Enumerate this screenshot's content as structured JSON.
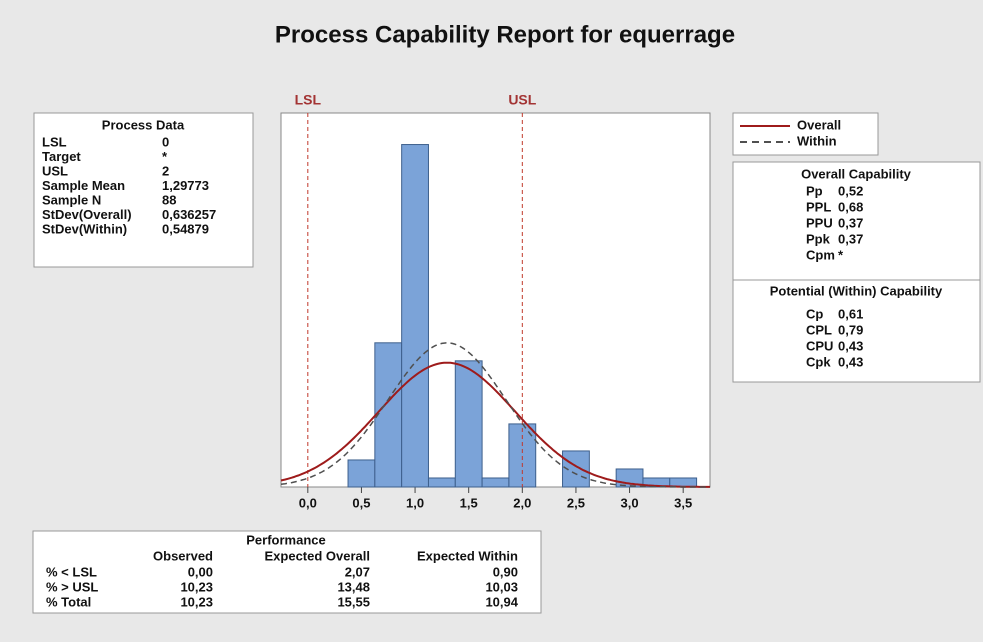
{
  "chart_data": {
    "type": "histogram",
    "title": "Process Capability Report for equerrage",
    "bins": [
      0.375,
      0.625,
      0.875,
      1.125,
      1.375,
      1.625,
      1.875,
      2.125,
      2.375,
      2.625,
      2.875,
      3.125,
      3.375,
      3.625
    ],
    "counts": [
      3,
      16,
      38,
      1,
      14,
      1,
      7,
      0,
      4,
      0,
      2,
      1,
      1
    ],
    "color": "#7ba3d8",
    "xlim": [
      -0.25,
      3.75
    ],
    "ylim": [
      0,
      41.5
    ],
    "xticks": [
      {
        "value": 0,
        "label": "0,0"
      },
      {
        "value": 0.5,
        "label": "0,5"
      },
      {
        "value": 1,
        "label": "1,0"
      },
      {
        "value": 1.5,
        "label": "1,5"
      },
      {
        "value": 2,
        "label": "2,0"
      },
      {
        "value": 2.5,
        "label": "2,5"
      },
      {
        "value": 3,
        "label": "3,0"
      },
      {
        "value": 3.5,
        "label": "3,5"
      }
    ],
    "spec_labels": [
      "LSL",
      "USL"
    ],
    "series": [
      {
        "name": "Overall",
        "color": "#9e1b1b"
      },
      {
        "name": "Within",
        "color": "#505050"
      }
    ]
  },
  "process_data": {
    "title": "Process Data",
    "rows": [
      {
        "name": "LSL",
        "value": 0
      },
      {
        "name": "Target",
        "value": "*"
      },
      {
        "name": "USL",
        "value": 2
      },
      {
        "name": "Sample Mean",
        "value": {
          "value": 1.29773,
          "label": "1,29773"
        }
      },
      {
        "name": "Sample N",
        "value": 88
      },
      {
        "name": "StDev(Overall)",
        "value": {
          "value": 0.636257,
          "label": "0,636257"
        }
      },
      {
        "name": "StDev(Within)",
        "value": {
          "value": 0.54879,
          "label": "0,54879"
        }
      }
    ]
  },
  "overall_capability": {
    "title": "Overall Capability",
    "rows": [
      [
        "Pp",
        "0,52"
      ],
      [
        "PPL",
        "0,68"
      ],
      [
        "PPU",
        "0,37"
      ],
      [
        "Ppk",
        "0,37"
      ],
      [
        "Cpm",
        "*"
      ]
    ]
  },
  "potential_capability": {
    "title": "Potential (Within) Capability",
    "rows": [
      [
        "Cp",
        "0,61"
      ],
      [
        "CPL",
        "0,79"
      ],
      [
        "CPU",
        "0,43"
      ],
      [
        "Cpk",
        "0,43"
      ]
    ]
  },
  "performance": {
    "title": "Performance",
    "columns": [
      "Observed",
      "Expected Overall",
      "Expected Within"
    ],
    "rows": [
      {
        "label": "% < LSL",
        "values": [
          "0,00",
          "2,07",
          "0,90"
        ]
      },
      {
        "label": "% > USL",
        "values": [
          "10,23",
          "13,48",
          "10,03"
        ]
      },
      {
        "label": "% Total",
        "values": [
          "10,23",
          "15,55",
          "10,94"
        ]
      }
    ]
  }
}
